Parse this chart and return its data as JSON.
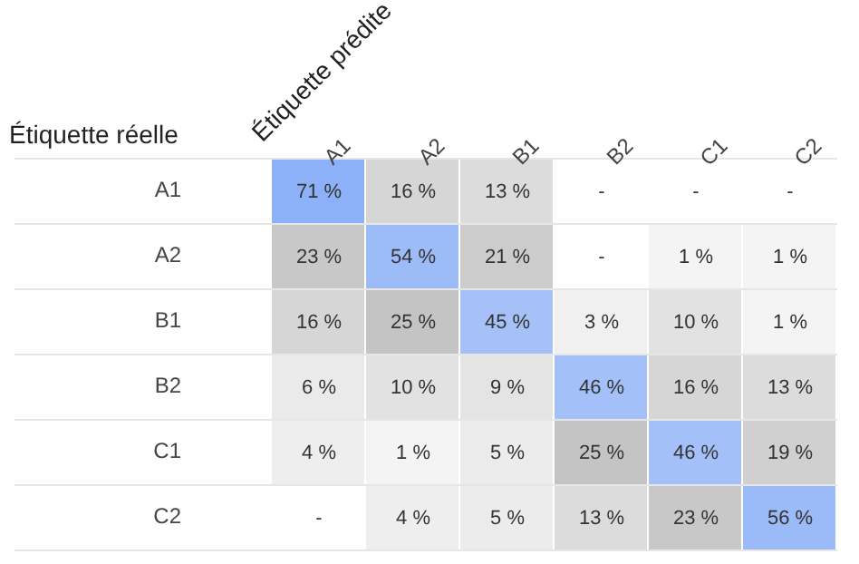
{
  "chart_data": {
    "type": "heatmap",
    "xlabel": "Étiquette prédite",
    "ylabel": "Étiquette réelle",
    "categories": [
      "A1",
      "A2",
      "B1",
      "B2",
      "C1",
      "C2"
    ],
    "y_categories": [
      "A1",
      "A2",
      "B1",
      "B2",
      "C1",
      "C2"
    ],
    "cells": [
      [
        71,
        16,
        13,
        null,
        null,
        null
      ],
      [
        23,
        54,
        21,
        null,
        1,
        1
      ],
      [
        16,
        25,
        45,
        3,
        10,
        1
      ],
      [
        6,
        10,
        9,
        46,
        16,
        13
      ],
      [
        4,
        1,
        5,
        25,
        46,
        19
      ],
      [
        null,
        4,
        5,
        13,
        23,
        56
      ]
    ],
    "cell_labels": [
      [
        "71 %",
        "16 %",
        "13 %",
        "-",
        "-",
        "-"
      ],
      [
        "23 %",
        "54 %",
        "21 %",
        "-",
        "1 %",
        "1 %"
      ],
      [
        "16 %",
        "25 %",
        "45 %",
        "3 %",
        "10 %",
        "1 %"
      ],
      [
        "6 %",
        "10 %",
        "9 %",
        "46 %",
        "16 %",
        "13 %"
      ],
      [
        "4 %",
        "1 %",
        "5 %",
        "25 %",
        "46 %",
        "19 %"
      ],
      [
        "-",
        "4 %",
        "5 %",
        "13 %",
        "23 %",
        "56 %"
      ]
    ],
    "grid": "y"
  }
}
